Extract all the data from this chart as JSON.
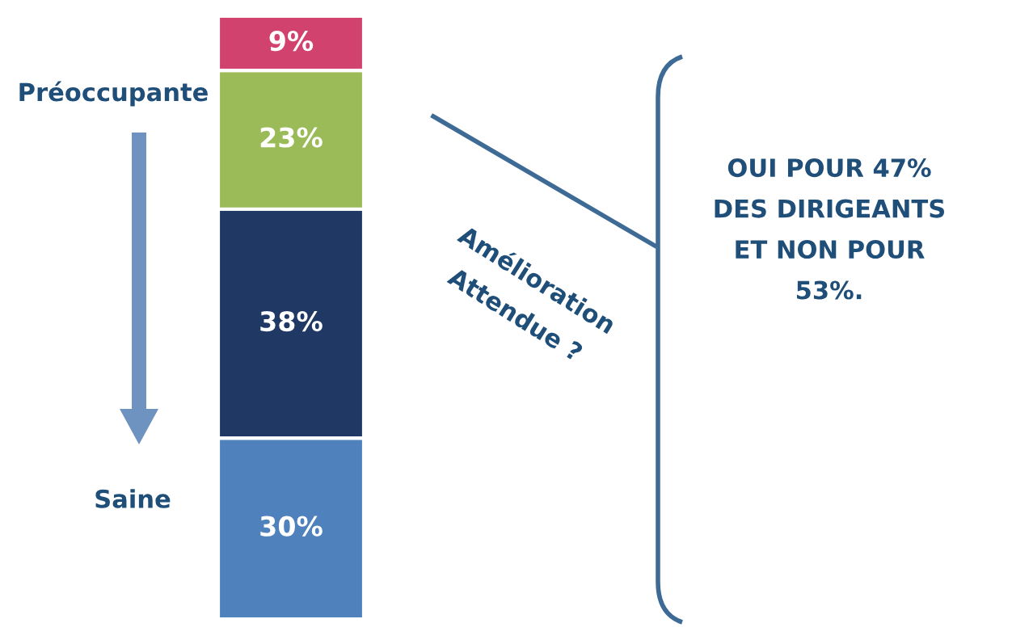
{
  "chart_data": {
    "type": "bar",
    "stacked": true,
    "categories": [
      null
    ],
    "series": [
      {
        "color": "#4f81bd",
        "values": [
          30
        ],
        "value_labels": [
          "30%"
        ]
      },
      {
        "color": "#1f3864",
        "values": [
          38
        ],
        "value_labels": [
          "38%"
        ]
      },
      {
        "color": "#9bbb59",
        "values": [
          23
        ],
        "value_labels": [
          "23%"
        ]
      },
      {
        "color": "#d2426f",
        "values": [
          9
        ],
        "value_labels": [
          "9%"
        ]
      }
    ],
    "annotations": [
      "Préoccupante",
      "Saine",
      "Amélioration\nAttendue ?",
      "OUI POUR 47%\nDES DIRIGEANTS\nET NON POUR\n53%."
    ]
  }
}
